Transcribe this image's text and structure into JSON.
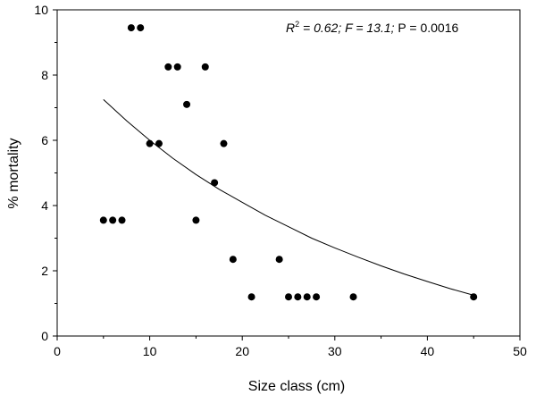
{
  "chart_data": {
    "type": "scatter",
    "xlabel": "Size class (cm)",
    "ylabel": "% mortality",
    "xlim": [
      0,
      50
    ],
    "ylim": [
      0,
      10
    ],
    "xticks": [
      "0",
      "10",
      "20",
      "30",
      "40",
      "50"
    ],
    "yticks": [
      "0",
      "2",
      "4",
      "6",
      "8",
      "10"
    ],
    "grid": false,
    "annotation": {
      "r_label": "R",
      "r_sup": "2",
      "r_value": " = 0.62; ",
      "f_label": "F",
      "f_value": " = 13.1; ",
      "p_text": "P = 0.0016"
    },
    "points": [
      {
        "x": 5,
        "y": 3.55
      },
      {
        "x": 6,
        "y": 3.55
      },
      {
        "x": 7,
        "y": 3.55
      },
      {
        "x": 8,
        "y": 9.45
      },
      {
        "x": 9,
        "y": 9.45
      },
      {
        "x": 10,
        "y": 5.9
      },
      {
        "x": 11,
        "y": 5.9
      },
      {
        "x": 12,
        "y": 8.25
      },
      {
        "x": 13,
        "y": 8.25
      },
      {
        "x": 14,
        "y": 7.1
      },
      {
        "x": 15,
        "y": 3.55
      },
      {
        "x": 16,
        "y": 8.25
      },
      {
        "x": 17,
        "y": 4.7
      },
      {
        "x": 18,
        "y": 5.9
      },
      {
        "x": 19,
        "y": 2.35
      },
      {
        "x": 21,
        "y": 1.2
      },
      {
        "x": 24,
        "y": 2.35
      },
      {
        "x": 25,
        "y": 1.2
      },
      {
        "x": 26,
        "y": 1.2
      },
      {
        "x": 27,
        "y": 1.2
      },
      {
        "x": 28,
        "y": 1.2
      },
      {
        "x": 32,
        "y": 1.2
      },
      {
        "x": 45,
        "y": 1.2
      }
    ],
    "fit_curve": {
      "x": [
        5,
        7.5,
        10,
        12.5,
        15,
        17.5,
        20,
        22.5,
        25,
        27.5,
        30,
        32.5,
        35,
        37.5,
        40,
        42.5,
        45
      ],
      "y": [
        7.25,
        6.6,
        6.0,
        5.45,
        4.95,
        4.5,
        4.1,
        3.7,
        3.35,
        3.0,
        2.7,
        2.42,
        2.15,
        1.9,
        1.67,
        1.45,
        1.25
      ]
    }
  }
}
